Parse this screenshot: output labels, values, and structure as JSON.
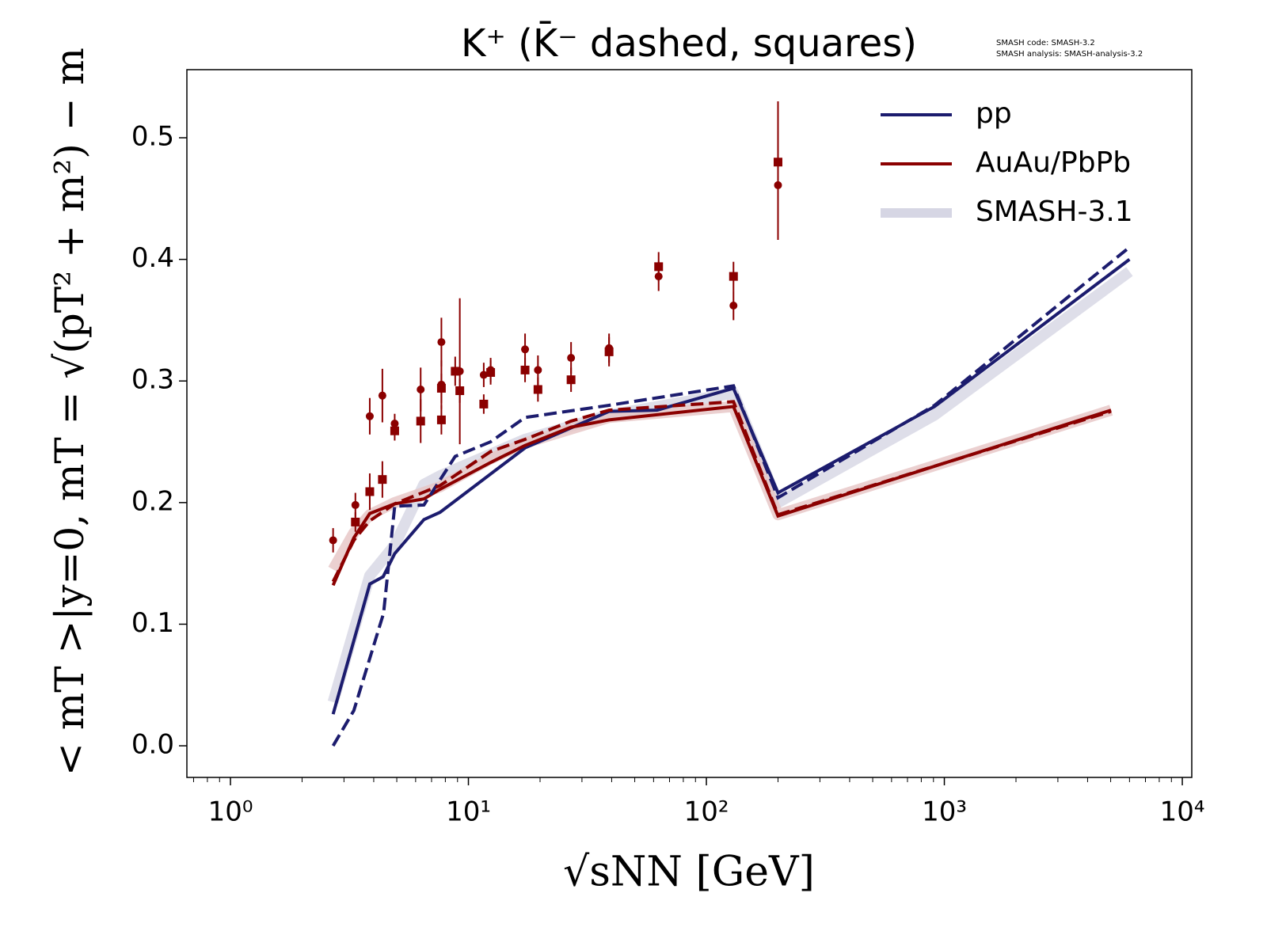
{
  "chart_data": {
    "type": "line",
    "title": "K⁺ (K̄⁻ dashed, squares)",
    "notes": [
      "SMASH code:      SMASH-3.2",
      "SMASH analysis:  SMASH-analysis-3.2"
    ],
    "x_label": "√sNN [GeV]",
    "y_label": "< mT >|y=0, mT = √(pT² + m²) − m",
    "xscale": "log",
    "xminor": true,
    "xlim": [
      0.656,
      10960
    ],
    "ylim": [
      -0.026,
      0.556
    ],
    "xticks": [
      {
        "value": 1,
        "label": "10⁰"
      },
      {
        "value": 10,
        "label": "10¹"
      },
      {
        "value": 100,
        "label": "10²"
      },
      {
        "value": 1000,
        "label": "10³"
      },
      {
        "value": 10000,
        "label": "10⁴"
      }
    ],
    "yticks": [
      {
        "value": 0,
        "label": "0.0"
      },
      0.1,
      0.2,
      0.3,
      0.4,
      0.5
    ],
    "legend": "upper right",
    "bands": [
      {
        "name": "SMASH-3.1",
        "color": "#d6d6e4",
        "x": [
          2.7,
          3.85,
          4.9,
          6.5,
          7.6,
          17.3,
          39,
          130,
          200,
          910,
          6000
        ],
        "values": [
          0.036,
          0.14,
          0.165,
          0.215,
          0.222,
          0.252,
          0.272,
          0.29,
          0.2,
          0.272,
          0.39
        ]
      },
      {
        "color": "#e6c4c4",
        "x": [
          2.7,
          3.3,
          3.85,
          4.9,
          7.6,
          12.4,
          17.3,
          39,
          130,
          200,
          5020
        ],
        "values": [
          0.145,
          0.175,
          0.19,
          0.2,
          0.213,
          0.236,
          0.249,
          0.27,
          0.279,
          0.19,
          0.276
        ]
      }
    ],
    "series": [
      {
        "name": "pp",
        "color": "#1c1c6e",
        "x": [
          2.7,
          3.85,
          4.38,
          4.9,
          6.5,
          7.6,
          17.3,
          39,
          62,
          130,
          200,
          910,
          6000
        ],
        "values": [
          0.026,
          0.133,
          0.139,
          0.158,
          0.186,
          0.192,
          0.245,
          0.275,
          0.276,
          0.294,
          0.208,
          0.279,
          0.4
        ]
      },
      {
        "name": "AuAu/PbPb",
        "color": "#8b0000",
        "x": [
          2.7,
          3.3,
          3.85,
          4.9,
          6.5,
          7.6,
          12.4,
          17.3,
          27,
          39,
          130,
          200,
          5020
        ],
        "values": [
          0.132,
          0.171,
          0.191,
          0.199,
          0.203,
          0.211,
          0.233,
          0.247,
          0.262,
          0.268,
          0.279,
          0.189,
          0.276
        ]
      },
      {
        "color": "#1c1c6e",
        "dash": true,
        "x": [
          2.7,
          3.3,
          4.4,
          4.9,
          6.5,
          8.8,
          12.4,
          17.3,
          39,
          130,
          200,
          910,
          6000
        ],
        "values": [
          0.0,
          0.029,
          0.109,
          0.197,
          0.198,
          0.238,
          0.25,
          0.27,
          0.28,
          0.296,
          0.204,
          0.28,
          0.41
        ]
      },
      {
        "color": "#8b0000",
        "dash": true,
        "x": [
          2.7,
          3.3,
          3.85,
          4.9,
          7.6,
          12.4,
          17.3,
          27,
          39,
          130,
          200,
          5020
        ],
        "values": [
          0.135,
          0.169,
          0.185,
          0.199,
          0.214,
          0.242,
          0.252,
          0.267,
          0.276,
          0.283,
          0.19,
          0.275
        ]
      }
    ],
    "points": [
      {
        "marker": "circle",
        "color": "#8b0000",
        "x": [
          2.7,
          3.35,
          3.85,
          4.35,
          4.9,
          6.3,
          7.7,
          7.7,
          9.2,
          11.6,
          12.4,
          17.3,
          19.6,
          27,
          39,
          63,
          130,
          200
        ],
        "values": [
          0.169,
          0.198,
          0.271,
          0.288,
          0.265,
          0.293,
          0.332,
          0.297,
          0.308,
          0.305,
          0.309,
          0.326,
          0.309,
          0.319,
          0.327,
          0.386,
          0.362,
          0.461
        ],
        "errors": [
          0.01,
          0.01,
          0.015,
          0.022,
          0.008,
          0.018,
          0.02,
          0.02,
          0.06,
          0.01,
          0.01,
          0.013,
          0.012,
          0.013,
          0.012,
          0.012,
          0.012,
          0.045
        ]
      },
      {
        "marker": "square",
        "color": "#8b0000",
        "x": [
          3.35,
          3.85,
          4.35,
          4.9,
          6.3,
          7.7,
          7.7,
          8.8,
          9.2,
          11.6,
          12.4,
          17.3,
          19.6,
          27,
          39,
          63,
          130,
          200
        ],
        "values": [
          0.184,
          0.209,
          0.219,
          0.259,
          0.267,
          0.294,
          0.268,
          0.308,
          0.292,
          0.281,
          0.307,
          0.309,
          0.293,
          0.301,
          0.324,
          0.394,
          0.386,
          0.48
        ],
        "errors": [
          0.008,
          0.015,
          0.015,
          0.008,
          0.018,
          0.012,
          0.012,
          0.012,
          0.01,
          0.008,
          0.01,
          0.01,
          0.01,
          0.01,
          0.012,
          0.012,
          0.012,
          0.05
        ]
      }
    ]
  }
}
